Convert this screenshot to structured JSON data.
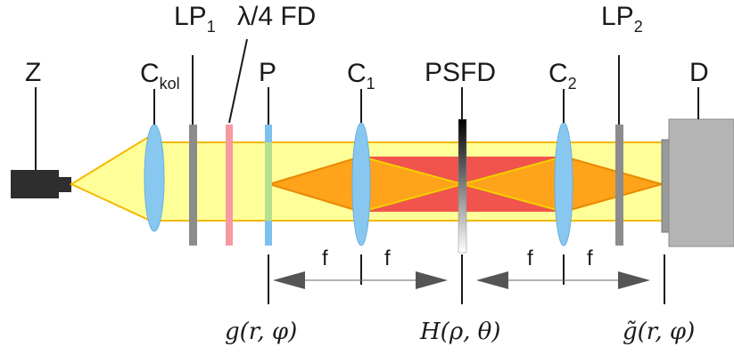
{
  "labels": {
    "z": "Z",
    "ckol_main": "C",
    "ckol_sub": "kol",
    "lp1_main": "LP",
    "lp1_sub": "1",
    "qwp": "λ/4 FD",
    "p": "P",
    "c1_main": "C",
    "c1_sub": "1",
    "psfd": "PSFD",
    "c2_main": "C",
    "c2_sub": "2",
    "lp2_main": "LP",
    "lp2_sub": "2",
    "d": "D"
  },
  "focal": {
    "f1": "f",
    "f2": "f",
    "f3": "f",
    "f4": "f"
  },
  "math": {
    "g_in": "g(r, φ)",
    "h": "H(ρ, θ)",
    "g_out": "g̃(r, φ)"
  },
  "colors": {
    "beam_yellow": "#ffff99",
    "beam_edge": "#f5b800",
    "cone_orange": "#ffa31a",
    "center_red": "#f04545",
    "lens_blue": "#88c8f0",
    "polarizer_gray": "#8c8c8c",
    "qwp_pink": "#f59aa0",
    "detector_gray": "#b4b4b4",
    "arrow_gray": "#555555"
  }
}
